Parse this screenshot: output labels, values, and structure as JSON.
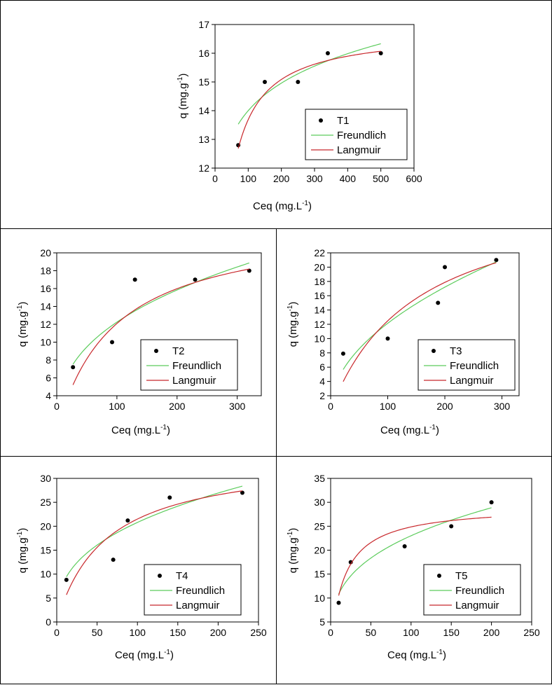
{
  "chart_data": [
    {
      "type": "scatter",
      "panel": "T1",
      "xlabel_main": "Ceq",
      "xlabel_unit": "(mg.L",
      "xlabel_exp": "-1",
      "xlabel_close": ")",
      "ylabel_main": "q",
      "ylabel_unit": "(mg.g",
      "ylabel_exp": "-1",
      "ylabel_close": ")",
      "xlim": [
        0,
        600
      ],
      "xticks": [
        0,
        100,
        200,
        300,
        400,
        500,
        600
      ],
      "ylim": [
        12,
        17
      ],
      "yticks": [
        12,
        13,
        14,
        15,
        16,
        17
      ],
      "series": [
        {
          "name": "T1",
          "kind": "points",
          "x": [
            70,
            150,
            250,
            340,
            500
          ],
          "y": [
            12.8,
            15.0,
            15.0,
            16.0,
            16.0
          ]
        },
        {
          "name": "Freundlich",
          "kind": "freundlich",
          "K": 9.01,
          "n": 10.45,
          "xrange": [
            70,
            500
          ],
          "color": "#5ccc5c"
        },
        {
          "name": "Langmuir",
          "kind": "langmuir",
          "qmax": 16.8,
          "b": 0.044,
          "xrange": [
            70,
            500
          ],
          "color": "#c8282c"
        }
      ],
      "legend": [
        "T1",
        "Freundlich",
        "Langmuir"
      ]
    },
    {
      "type": "scatter",
      "panel": "T2",
      "xlabel_main": "Ceq",
      "xlabel_unit": "(mg.L",
      "xlabel_exp": "-1",
      "xlabel_close": ")",
      "ylabel_main": "q",
      "ylabel_unit": "(mg.g",
      "ylabel_exp": "-1",
      "ylabel_close": ")",
      "xlim": [
        0,
        340
      ],
      "xticks": [
        0,
        100,
        200,
        300
      ],
      "ylim": [
        4,
        20
      ],
      "yticks": [
        4,
        6,
        8,
        10,
        12,
        14,
        16,
        18,
        20
      ],
      "series": [
        {
          "name": "T2",
          "kind": "points",
          "x": [
            27,
            92,
            130,
            230,
            320
          ],
          "y": [
            7.2,
            10.0,
            17.0,
            17.0,
            18.0
          ]
        },
        {
          "name": "Freundlich",
          "kind": "freundlich",
          "K": 2.21,
          "n": 2.69,
          "xrange": [
            27,
            320
          ],
          "color": "#5ccc5c"
        },
        {
          "name": "Langmuir",
          "kind": "langmuir",
          "qmax": 23.6,
          "b": 0.0105,
          "xrange": [
            27,
            320
          ],
          "color": "#c8282c"
        }
      ],
      "legend": [
        "T2",
        "Freundlich",
        "Langmuir"
      ]
    },
    {
      "type": "scatter",
      "panel": "T3",
      "xlabel_main": "Ceq",
      "xlabel_unit": "(mg.L",
      "xlabel_exp": "-1",
      "xlabel_close": ")",
      "ylabel_main": "q",
      "ylabel_unit": "(mg.g",
      "ylabel_exp": "-1",
      "ylabel_close": ")",
      "xlim": [
        0,
        330
      ],
      "xticks": [
        0,
        100,
        200,
        300
      ],
      "ylim": [
        2,
        22
      ],
      "yticks": [
        2,
        4,
        6,
        8,
        10,
        12,
        14,
        16,
        18,
        20,
        22
      ],
      "series": [
        {
          "name": "T3",
          "kind": "points",
          "x": [
            22,
            100,
            188,
            200,
            290
          ],
          "y": [
            7.9,
            10.0,
            15.0,
            20.0,
            21.0
          ]
        },
        {
          "name": "Freundlich",
          "kind": "freundlich",
          "K": 1.2,
          "n": 1.99,
          "xrange": [
            22,
            290
          ],
          "color": "#5ccc5c"
        },
        {
          "name": "Langmuir",
          "kind": "langmuir",
          "qmax": 31.4,
          "b": 0.0066,
          "xrange": [
            22,
            290
          ],
          "color": "#c8282c"
        }
      ],
      "legend": [
        "T3",
        "Freundlich",
        "Langmuir"
      ]
    },
    {
      "type": "scatter",
      "panel": "T4",
      "xlabel_main": "Ceq",
      "xlabel_unit": "(mg.L",
      "xlabel_exp": "-1",
      "xlabel_close": ")",
      "ylabel_main": "q",
      "ylabel_unit": "(mg.g",
      "ylabel_exp": "-1",
      "ylabel_close": ")",
      "xlim": [
        0,
        250
      ],
      "xticks": [
        0,
        50,
        100,
        150,
        200,
        250
      ],
      "ylim": [
        0,
        30
      ],
      "yticks": [
        0,
        5,
        10,
        15,
        20,
        25,
        30
      ],
      "series": [
        {
          "name": "T4",
          "kind": "points",
          "x": [
            12,
            70,
            88,
            140,
            230
          ],
          "y": [
            8.8,
            13.0,
            21.2,
            26.0,
            27.0
          ]
        },
        {
          "name": "Freundlich",
          "kind": "freundlich",
          "K": 3.73,
          "n": 2.68,
          "xrange": [
            12,
            230
          ],
          "color": "#5ccc5c"
        },
        {
          "name": "Langmuir",
          "kind": "langmuir",
          "qmax": 34.7,
          "b": 0.0163,
          "xrange": [
            12,
            230
          ],
          "color": "#c8282c"
        }
      ],
      "legend": [
        "T4",
        "Freundlich",
        "Langmuir"
      ]
    },
    {
      "type": "scatter",
      "panel": "T5",
      "xlabel_main": "Ceq",
      "xlabel_unit": "(mg.L",
      "xlabel_exp": "-1",
      "xlabel_close": ")",
      "ylabel_main": "q",
      "ylabel_unit": "(mg.g",
      "ylabel_exp": "-1",
      "ylabel_close": ")",
      "xlim": [
        0,
        250
      ],
      "xticks": [
        0,
        50,
        100,
        150,
        200,
        250
      ],
      "ylim": [
        5,
        35
      ],
      "yticks": [
        5,
        10,
        15,
        20,
        25,
        30,
        35
      ],
      "series": [
        {
          "name": "T5",
          "kind": "points",
          "x": [
            10,
            25,
            92,
            150,
            200
          ],
          "y": [
            9.0,
            17.5,
            20.8,
            25.0,
            30.0
          ]
        },
        {
          "name": "Freundlich",
          "kind": "freundlich",
          "K": 5.11,
          "n": 3.06,
          "xrange": [
            10,
            200
          ],
          "color": "#5ccc5c"
        },
        {
          "name": "Langmuir",
          "kind": "langmuir",
          "qmax": 29.3,
          "b": 0.056,
          "xrange": [
            10,
            200
          ],
          "color": "#c8282c"
        }
      ],
      "legend": [
        "T5",
        "Freundlich",
        "Langmuir"
      ]
    }
  ]
}
